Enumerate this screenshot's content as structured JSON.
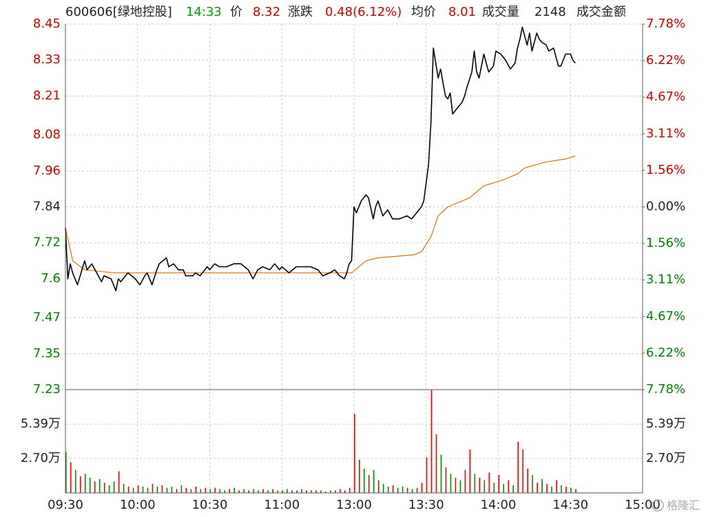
{
  "chart_data": {
    "type": "intraday",
    "header": {
      "code_name": "600606[绿地控股]",
      "time": "14:33",
      "price_label": "价",
      "price": 8.32,
      "change_label": "涨跌",
      "change": "0.48(6.12%)",
      "avg_label": "均价",
      "avg": 8.01,
      "volume_label": "成交量",
      "volume": 2148,
      "amount_label": "成交金额"
    },
    "xlim": [
      0,
      240
    ],
    "xticks": [
      {
        "value": 0,
        "label": "09:30"
      },
      {
        "value": 30,
        "label": "10:00"
      },
      {
        "value": 60,
        "label": "10:30"
      },
      {
        "value": 90,
        "label": "11:00"
      },
      {
        "value": 120,
        "label": "13:00"
      },
      {
        "value": 150,
        "label": "13:30"
      },
      {
        "value": 180,
        "label": "14:00"
      },
      {
        "value": 210,
        "label": "14:30"
      },
      {
        "value": 240,
        "label": "15:00"
      }
    ],
    "ylim": [
      7.23,
      8.45
    ],
    "yticks": [
      8.45,
      8.33,
      8.21,
      8.08,
      7.96,
      7.84,
      7.72,
      7.6,
      7.47,
      7.35,
      7.23
    ],
    "y2lim": [
      -7.78,
      7.78
    ],
    "y2ticks": [
      {
        "value": 7.78,
        "label": "7.78%"
      },
      {
        "value": 6.22,
        "label": "6.22%"
      },
      {
        "value": 4.67,
        "label": "4.67%"
      },
      {
        "value": 3.11,
        "label": "3.11%"
      },
      {
        "value": 1.56,
        "label": "1.56%"
      },
      {
        "value": 0,
        "label": "0.00%"
      },
      {
        "value": -1.56,
        "label": "1.56%"
      },
      {
        "value": -3.11,
        "label": "3.11%"
      },
      {
        "value": -4.67,
        "label": "4.67%"
      },
      {
        "value": -6.22,
        "label": "6.22%"
      },
      {
        "value": -7.78,
        "label": "7.78%"
      }
    ],
    "up_color": "#cc0000",
    "down_color": "#008000",
    "flat_color": "#222222",
    "grid": true,
    "price": {
      "color": "#000000",
      "x": [
        0,
        1,
        2,
        3,
        5,
        8,
        9,
        11,
        13,
        15,
        16,
        19,
        21,
        22,
        23,
        26,
        29,
        31,
        33,
        34,
        36,
        38,
        39,
        42,
        43,
        45,
        47,
        49,
        50,
        53,
        54,
        56,
        59,
        60,
        62,
        64,
        67,
        70,
        73,
        76,
        78,
        80,
        82,
        85,
        87,
        89,
        90,
        93,
        96,
        99,
        102,
        105,
        107,
        110,
        112,
        114,
        116,
        117,
        118,
        119,
        120,
        121,
        123,
        125,
        126,
        128,
        129,
        130,
        132,
        134,
        136,
        139,
        142,
        144,
        146,
        148,
        149,
        151,
        152,
        153,
        155,
        156,
        158,
        159,
        160,
        161,
        163,
        165,
        166,
        167,
        169,
        170,
        171,
        172,
        174,
        176,
        178,
        179,
        181,
        183,
        185,
        187,
        188,
        189,
        190,
        192,
        193,
        194,
        196,
        197,
        198,
        200,
        201,
        203,
        205,
        206,
        208,
        210,
        211,
        212
      ],
      "values": [
        7.77,
        7.6,
        7.65,
        7.62,
        7.58,
        7.66,
        7.63,
        7.65,
        7.62,
        7.59,
        7.61,
        7.6,
        7.56,
        7.6,
        7.59,
        7.62,
        7.6,
        7.58,
        7.61,
        7.62,
        7.58,
        7.63,
        7.65,
        7.67,
        7.64,
        7.65,
        7.63,
        7.63,
        7.61,
        7.61,
        7.62,
        7.61,
        7.64,
        7.63,
        7.65,
        7.64,
        7.64,
        7.65,
        7.65,
        7.63,
        7.6,
        7.63,
        7.64,
        7.63,
        7.65,
        7.63,
        7.64,
        7.62,
        7.64,
        7.64,
        7.64,
        7.63,
        7.61,
        7.62,
        7.63,
        7.61,
        7.6,
        7.62,
        7.65,
        7.66,
        7.84,
        7.82,
        7.86,
        7.88,
        7.87,
        7.8,
        7.84,
        7.86,
        7.81,
        7.83,
        7.8,
        7.8,
        7.81,
        7.8,
        7.82,
        7.84,
        7.86,
        7.98,
        8.12,
        8.37,
        8.27,
        8.3,
        8.21,
        8.2,
        8.22,
        8.15,
        8.17,
        8.19,
        8.21,
        8.24,
        8.29,
        8.36,
        8.29,
        8.27,
        8.35,
        8.29,
        8.31,
        8.36,
        8.35,
        8.33,
        8.3,
        8.32,
        8.37,
        8.4,
        8.44,
        8.38,
        8.42,
        8.36,
        8.42,
        8.4,
        8.39,
        8.38,
        8.36,
        8.37,
        8.31,
        8.31,
        8.35,
        8.35,
        8.33,
        8.32
      ]
    },
    "average": {
      "color": "#e07000",
      "x": [
        0,
        3,
        8,
        20,
        60,
        119,
        125,
        130,
        145,
        148,
        152,
        155,
        159,
        168,
        171,
        174,
        182,
        188,
        191,
        200,
        208,
        212
      ],
      "values": [
        7.77,
        7.66,
        7.63,
        7.62,
        7.62,
        7.62,
        7.66,
        7.67,
        7.68,
        7.69,
        7.74,
        7.81,
        7.84,
        7.87,
        7.89,
        7.91,
        7.93,
        7.95,
        7.97,
        7.99,
        8.0,
        8.01
      ]
    },
    "vol_ylim": [
      0,
      8.1
    ],
    "vol_yticks": [
      {
        "value": 5.39,
        "label": "5.39万"
      },
      {
        "value": 2.7,
        "label": "2.70万"
      }
    ],
    "volume": {
      "x": [
        0,
        2,
        4,
        6,
        8,
        10,
        12,
        14,
        16,
        18,
        20,
        22,
        24,
        26,
        28,
        30,
        32,
        34,
        36,
        38,
        40,
        42,
        44,
        46,
        48,
        50,
        52,
        54,
        56,
        58,
        60,
        62,
        64,
        66,
        68,
        70,
        72,
        74,
        76,
        78,
        80,
        82,
        84,
        86,
        88,
        90,
        92,
        94,
        96,
        98,
        100,
        102,
        104,
        106,
        108,
        110,
        112,
        114,
        116,
        118,
        120,
        122,
        124,
        126,
        128,
        130,
        132,
        134,
        136,
        138,
        140,
        142,
        144,
        146,
        148,
        150,
        152,
        154,
        156,
        158,
        160,
        162,
        164,
        166,
        168,
        170,
        172,
        174,
        176,
        178,
        180,
        182,
        184,
        186,
        188,
        190,
        192,
        194,
        196,
        198,
        200,
        202,
        204,
        206,
        208,
        210,
        212
      ],
      "values": [
        3.2,
        2.4,
        1.8,
        1.3,
        1.5,
        1.2,
        0.9,
        1.1,
        0.8,
        0.6,
        0.9,
        1.7,
        0.7,
        0.5,
        0.4,
        0.6,
        0.5,
        0.4,
        0.7,
        0.5,
        0.6,
        0.4,
        0.5,
        0.3,
        0.6,
        0.4,
        0.3,
        0.5,
        0.3,
        0.4,
        0.3,
        0.4,
        0.3,
        0.2,
        0.3,
        0.4,
        0.2,
        0.3,
        0.2,
        0.3,
        0.2,
        0.3,
        0.2,
        0.3,
        0.2,
        0.2,
        0.3,
        0.2,
        0.2,
        0.3,
        0.2,
        0.2,
        0.2,
        0.2,
        0.1,
        0.2,
        0.2,
        0.3,
        0.2,
        0.4,
        6.2,
        2.6,
        1.9,
        1.4,
        1.8,
        1.0,
        0.7,
        0.5,
        0.6,
        0.4,
        0.5,
        0.4,
        0.3,
        0.4,
        0.8,
        2.8,
        8.1,
        4.6,
        3.0,
        2.0,
        1.5,
        1.2,
        1.0,
        1.8,
        3.4,
        1.5,
        1.2,
        1.0,
        1.6,
        0.8,
        1.4,
        0.7,
        1.0,
        0.6,
        4.0,
        3.4,
        1.9,
        1.4,
        0.8,
        1.1,
        0.7,
        0.5,
        1.0,
        0.6,
        0.5,
        0.4,
        0.3
      ],
      "colors": [
        "#080",
        "#e00",
        "#080",
        "#e00",
        "#080",
        "#080",
        "#e00",
        "#080",
        "#e00",
        "#080",
        "#080",
        "#e00",
        "#080",
        "#e00",
        "#080",
        "#e00",
        "#080",
        "#080",
        "#e00",
        "#080",
        "#e00",
        "#080",
        "#080",
        "#e00",
        "#080",
        "#e00",
        "#080",
        "#e00",
        "#080",
        "#e00",
        "#080",
        "#e00",
        "#080",
        "#080",
        "#e00",
        "#080",
        "#e00",
        "#080",
        "#e00",
        "#080",
        "#080",
        "#e00",
        "#080",
        "#e00",
        "#080",
        "#e00",
        "#080",
        "#e00",
        "#080",
        "#080",
        "#e00",
        "#080",
        "#e00",
        "#080",
        "#e00",
        "#080",
        "#080",
        "#e00",
        "#e00",
        "#e00",
        "#e00",
        "#e00",
        "#080",
        "#e00",
        "#080",
        "#e00",
        "#080",
        "#080",
        "#e00",
        "#080",
        "#080",
        "#e00",
        "#080",
        "#e00",
        "#e00",
        "#e00",
        "#e00",
        "#e00",
        "#080",
        "#e00",
        "#080",
        "#e00",
        "#080",
        "#e00",
        "#e00",
        "#080",
        "#e00",
        "#080",
        "#e00",
        "#080",
        "#e00",
        "#080",
        "#e00",
        "#080",
        "#e00",
        "#e00",
        "#e00",
        "#080",
        "#e00",
        "#080",
        "#e00",
        "#080",
        "#e00",
        "#080",
        "#e00",
        "#080",
        "#e00"
      ]
    },
    "watermark": "格隆汇"
  }
}
